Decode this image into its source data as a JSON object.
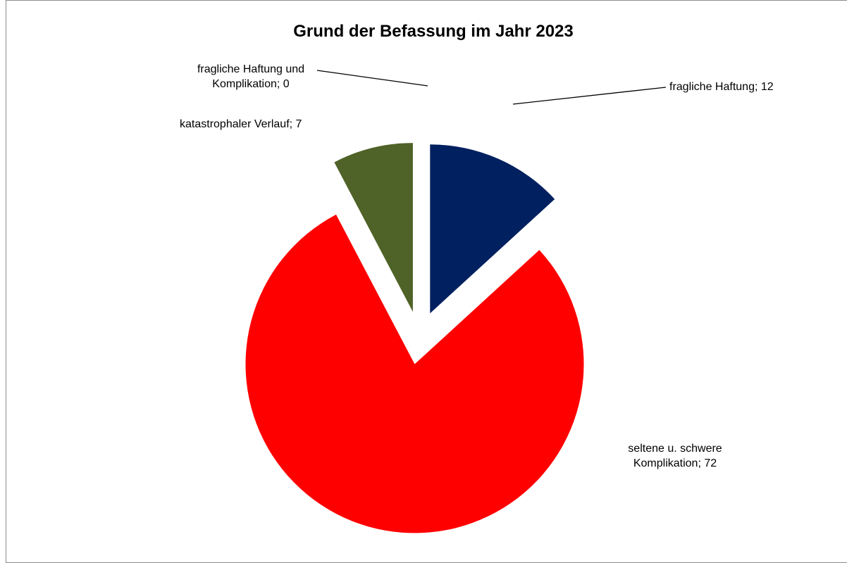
{
  "chart_data": {
    "type": "pie",
    "title": "Grund der Befassung im Jahr 2023",
    "slices": [
      {
        "name": "fragliche Haftung",
        "value": 12,
        "color": "#002060",
        "label_lines": [
          "fragliche Haftung; 12"
        ]
      },
      {
        "name": "seltene u. schwere Komplikation",
        "value": 72,
        "color": "#ff0000",
        "label_lines": [
          "seltene u. schwere",
          "Komplikation;  72"
        ]
      },
      {
        "name": "katastrophaler Verlauf",
        "value": 7,
        "color": "#4f6228",
        "label_lines": [
          "katastrophaler Verlauf; 7"
        ]
      },
      {
        "name": "fragliche Haftung und Komplikation",
        "value": 0,
        "color": "#7f7f7f",
        "label_lines": [
          "fragliche Haftung und",
          "Komplikation;  0"
        ]
      }
    ],
    "legend": "none"
  }
}
